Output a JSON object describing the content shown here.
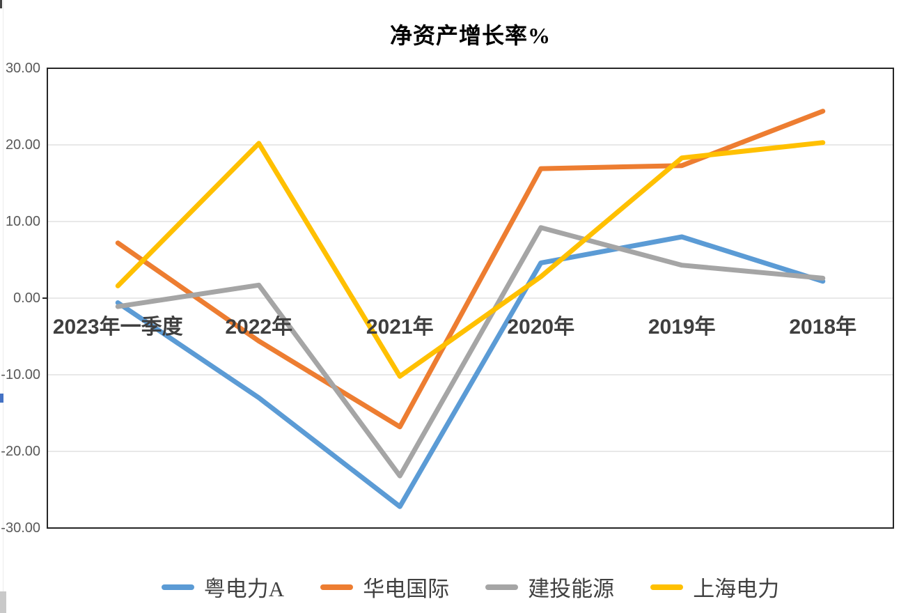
{
  "page": {
    "background": "#ffffff"
  },
  "chart_data": {
    "type": "line",
    "title": "净资产增长率%",
    "categories": [
      "2023年一季度",
      "2022年",
      "2021年",
      "2020年",
      "2019年",
      "2018年"
    ],
    "series": [
      {
        "name": "粤电力A",
        "color": "#5B9BD5",
        "values": [
          -0.6,
          -13.0,
          -27.2,
          4.6,
          8.0,
          2.2
        ]
      },
      {
        "name": "华电国际",
        "color": "#ED7D31",
        "values": [
          7.2,
          -5.6,
          -16.8,
          16.9,
          17.3,
          24.4
        ]
      },
      {
        "name": "建投能源",
        "color": "#A5A5A5",
        "values": [
          -1.1,
          1.7,
          -23.2,
          9.2,
          4.3,
          2.6
        ]
      },
      {
        "name": "上海电力",
        "color": "#FFC000",
        "values": [
          1.6,
          20.2,
          -10.2,
          2.8,
          18.3,
          20.3
        ]
      }
    ],
    "y_ticks": [
      {
        "value": 30,
        "label": "30.00"
      },
      {
        "value": 20,
        "label": "20.00"
      },
      {
        "value": 10,
        "label": "10.00"
      },
      {
        "value": 0,
        "label": "0.00"
      },
      {
        "value": -10,
        "label": "-10.00"
      },
      {
        "value": -20,
        "label": "-20.00"
      },
      {
        "value": -30,
        "label": "-30.00"
      }
    ],
    "ylim": [
      -30,
      30
    ],
    "xlabel": "",
    "ylabel": "",
    "grid": "horizontal",
    "gridline_color": "#D9D9D9",
    "frame_color": "#262626",
    "legend_position": "bottom",
    "line_width": 7
  }
}
